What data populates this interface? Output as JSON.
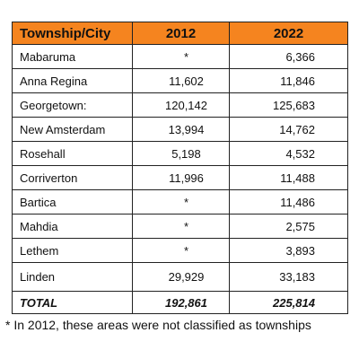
{
  "table": {
    "headers": {
      "name": "Township/City",
      "y2012": "2012",
      "y2022": "2022"
    },
    "header_color": "#f5841f",
    "rows": [
      {
        "name": "Mabaruma",
        "y2012": "*",
        "y2022": "6,366"
      },
      {
        "name": "Anna Regina",
        "y2012": "11,602",
        "y2022": "11,846"
      },
      {
        "name": "Georgetown:",
        "y2012": "120,142",
        "y2022": "125,683"
      },
      {
        "name": "New Amsterdam",
        "y2012": "13,994",
        "y2022": "14,762"
      },
      {
        "name": "Rosehall",
        "y2012": "5,198",
        "y2022": "4,532"
      },
      {
        "name": "Corriverton",
        "y2012": "11,996",
        "y2022": "11,488"
      },
      {
        "name": "Bartica",
        "y2012": "*",
        "y2022": "11,486"
      },
      {
        "name": "Mahdia",
        "y2012": "*",
        "y2022": "2,575"
      },
      {
        "name": "Lethem",
        "y2012": "*",
        "y2022": "3,893"
      },
      {
        "name": "Linden",
        "y2012": "29,929",
        "y2022": "33,183"
      }
    ],
    "total": {
      "name": "TOTAL",
      "y2012": "192,861",
      "y2022": "225,814"
    }
  },
  "footnote": "* In 2012, these areas were not classified as townships"
}
